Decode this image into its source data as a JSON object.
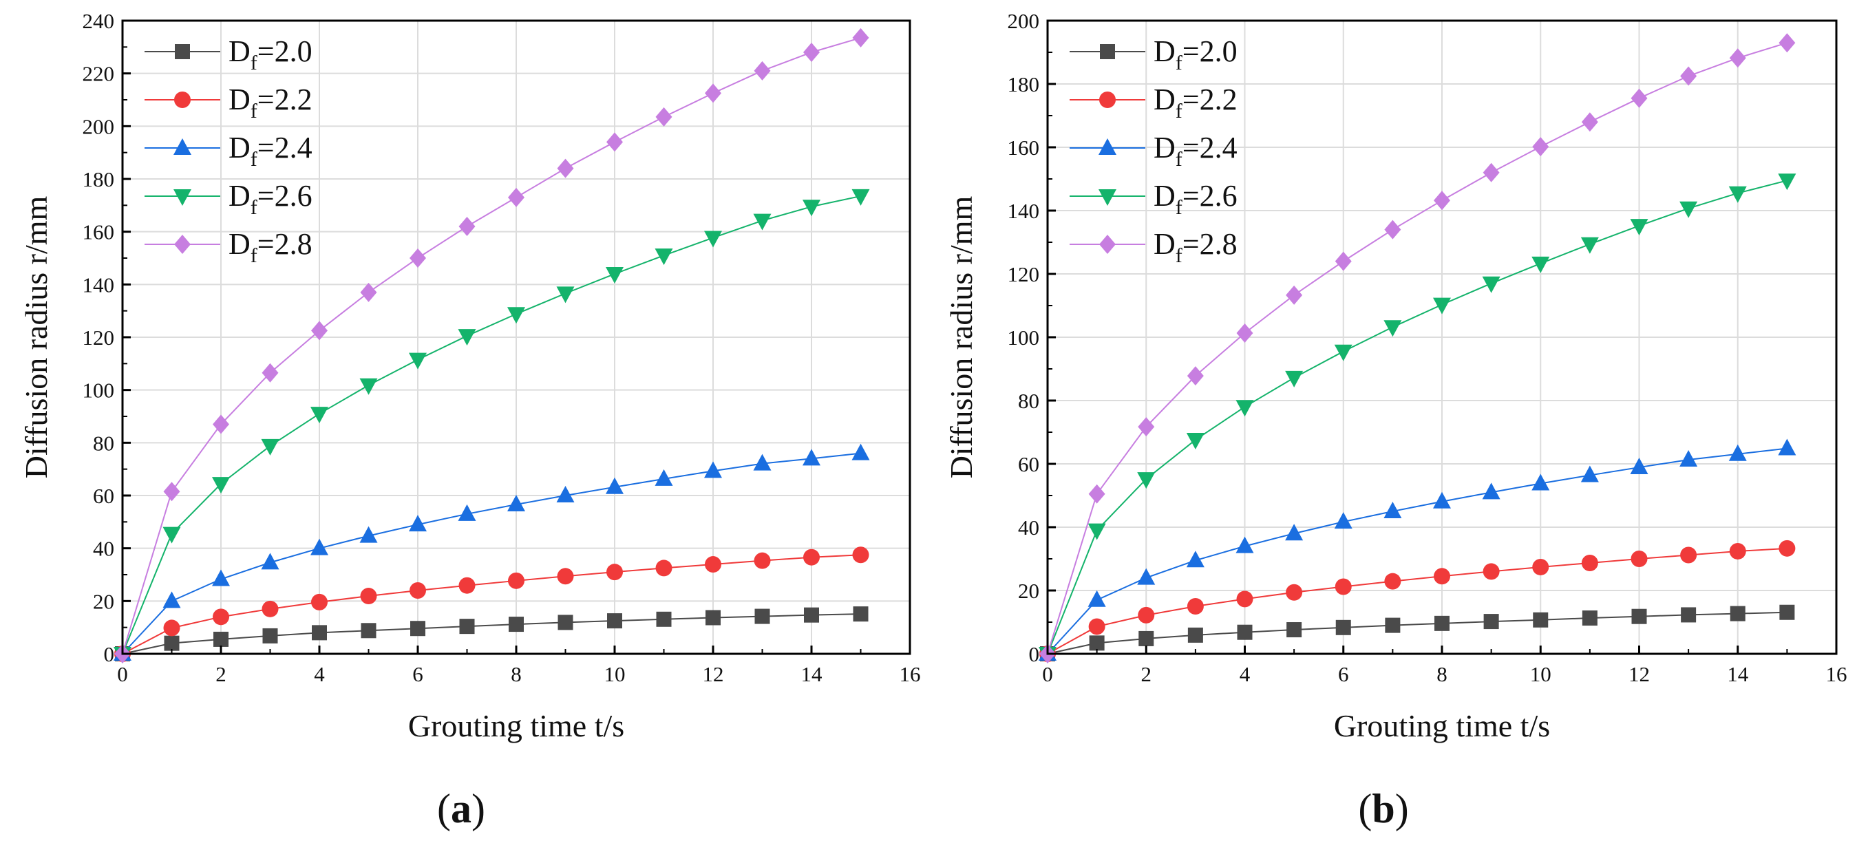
{
  "chart_data": [
    {
      "panel": "a",
      "panel_label": "a",
      "type": "line",
      "title": "",
      "xlabel": "Grouting time t/s",
      "ylabel": "Diffusion radius  r/mm",
      "xlim": [
        0,
        16
      ],
      "ylim": [
        0,
        240
      ],
      "xticks": [
        0,
        2,
        4,
        6,
        8,
        10,
        12,
        14,
        16
      ],
      "yticks": [
        0,
        20,
        40,
        60,
        80,
        100,
        120,
        140,
        160,
        180,
        200,
        220,
        240
      ],
      "grid": true,
      "legend_position": "top-left",
      "x": [
        0,
        1,
        2,
        3,
        4,
        5,
        6,
        7,
        8,
        9,
        10,
        11,
        12,
        13,
        14,
        15
      ],
      "series": [
        {
          "name": "Df=2.0",
          "label_main": "D",
          "label_sub": "f",
          "label_rest": "=2.0",
          "color": "#4a4a4a",
          "marker": "square",
          "values": [
            0,
            4,
            5.5,
            6.8,
            8,
            8.8,
            9.6,
            10.4,
            11.2,
            11.9,
            12.5,
            13.1,
            13.7,
            14.2,
            14.7,
            15.1
          ]
        },
        {
          "name": "Df=2.2",
          "label_main": "D",
          "label_sub": "f",
          "label_rest": "=2.2",
          "color": "#f03a3a",
          "marker": "circle",
          "values": [
            0,
            9.8,
            14,
            17,
            19.6,
            21.9,
            24,
            25.9,
            27.7,
            29.4,
            31,
            32.5,
            33.9,
            35.3,
            36.6,
            37.5
          ]
        },
        {
          "name": "Df=2.4",
          "label_main": "D",
          "label_sub": "f",
          "label_rest": "=2.4",
          "color": "#1a6ee0",
          "marker": "triangle-up",
          "values": [
            0,
            20,
            28.3,
            34.6,
            40,
            44.7,
            49,
            53,
            56.6,
            60,
            63.2,
            66.3,
            69.3,
            72.1,
            74,
            76
          ]
        },
        {
          "name": "Df=2.6",
          "label_main": "D",
          "label_sub": "f",
          "label_rest": "=2.6",
          "color": "#14b36b",
          "marker": "triangle-down",
          "values": [
            0,
            45.5,
            64.4,
            78.8,
            91,
            101.8,
            111.5,
            120.5,
            128.8,
            136.6,
            144,
            151,
            157.7,
            164.2,
            169.5,
            173.5
          ]
        },
        {
          "name": "Df=2.8",
          "label_main": "D",
          "label_sub": "f",
          "label_rest": "=2.8",
          "color": "#c77ee0",
          "marker": "diamond",
          "values": [
            0,
            61.5,
            87,
            106.5,
            122.5,
            137,
            150,
            162,
            173,
            184,
            194,
            203.5,
            212.5,
            221,
            228,
            233.5
          ]
        }
      ]
    },
    {
      "panel": "b",
      "panel_label": "b",
      "type": "line",
      "title": "",
      "xlabel": "Grouting time t/s",
      "ylabel": "Diffusion radius  r/mm",
      "xlim": [
        0,
        16
      ],
      "ylim": [
        0,
        200
      ],
      "xticks": [
        0,
        2,
        4,
        6,
        8,
        10,
        12,
        14,
        16
      ],
      "yticks": [
        0,
        20,
        40,
        60,
        80,
        100,
        120,
        140,
        160,
        180,
        200
      ],
      "grid": true,
      "legend_position": "top-left",
      "x": [
        0,
        1,
        2,
        3,
        4,
        5,
        6,
        7,
        8,
        9,
        10,
        11,
        12,
        13,
        14,
        15
      ],
      "series": [
        {
          "name": "Df=2.0",
          "label_main": "D",
          "label_sub": "f",
          "label_rest": "=2.0",
          "color": "#4a4a4a",
          "marker": "square",
          "values": [
            0,
            3.4,
            4.8,
            5.9,
            6.8,
            7.6,
            8.3,
            9,
            9.6,
            10.2,
            10.7,
            11.3,
            11.8,
            12.3,
            12.7,
            13.1
          ]
        },
        {
          "name": "Df=2.2",
          "label_main": "D",
          "label_sub": "f",
          "label_rest": "=2.2",
          "color": "#f03a3a",
          "marker": "circle",
          "values": [
            0,
            8.6,
            12.2,
            15,
            17.3,
            19.4,
            21.2,
            22.9,
            24.5,
            26,
            27.4,
            28.7,
            30,
            31.2,
            32.4,
            33.3
          ]
        },
        {
          "name": "Df=2.4",
          "label_main": "D",
          "label_sub": "f",
          "label_rest": "=2.4",
          "color": "#1a6ee0",
          "marker": "triangle-up",
          "values": [
            0,
            17,
            24,
            29.5,
            34,
            38,
            41.7,
            45,
            48.1,
            51,
            53.8,
            56.4,
            58.9,
            61.3,
            63.1,
            64.9
          ]
        },
        {
          "name": "Df=2.6",
          "label_main": "D",
          "label_sub": "f",
          "label_rest": "=2.6",
          "color": "#14b36b",
          "marker": "triangle-down",
          "values": [
            0,
            39,
            55.2,
            67.6,
            78,
            87.2,
            95.5,
            103.2,
            110.3,
            117,
            123.3,
            129.4,
            135.2,
            140.7,
            145.5,
            149.5
          ]
        },
        {
          "name": "Df=2.8",
          "label_main": "D",
          "label_sub": "f",
          "label_rest": "=2.8",
          "color": "#c77ee0",
          "marker": "diamond",
          "values": [
            0,
            50.5,
            71.7,
            87.8,
            101.3,
            113.3,
            124,
            134,
            143.2,
            152,
            160.2,
            168,
            175.5,
            182.5,
            188.2,
            193
          ]
        }
      ]
    }
  ]
}
